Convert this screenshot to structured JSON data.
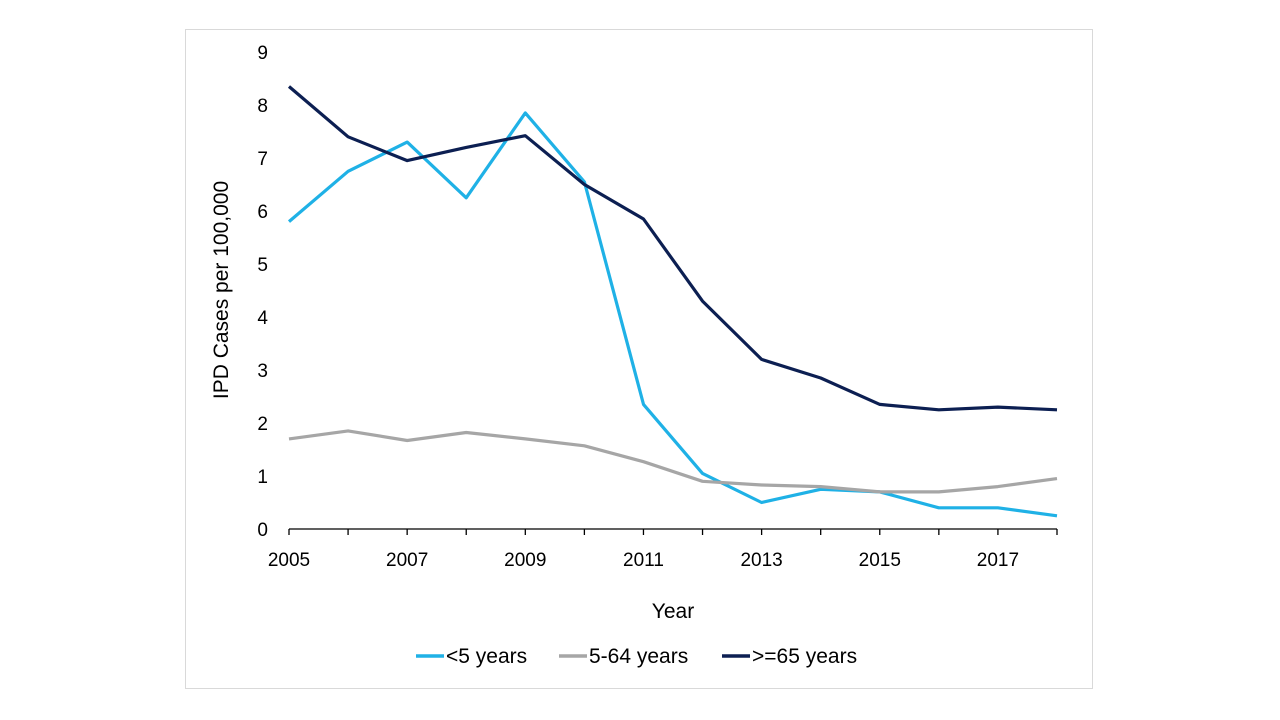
{
  "chart_data": {
    "type": "line",
    "title": "",
    "xlabel": "Year",
    "ylabel": "IPD Cases per 100,000",
    "x": [
      2005,
      2006,
      2007,
      2008,
      2009,
      2010,
      2011,
      2012,
      2013,
      2014,
      2015,
      2016,
      2017,
      2018
    ],
    "x_tick_labels": [
      "2005",
      "2007",
      "2009",
      "2011",
      "2013",
      "2015",
      "2017"
    ],
    "x_ticks": [
      2005,
      2007,
      2009,
      2011,
      2013,
      2015,
      2017
    ],
    "y_tick_labels": [
      "0",
      "1",
      "2",
      "3",
      "4",
      "5",
      "6",
      "7",
      "8",
      "9"
    ],
    "ylim": [
      0,
      9
    ],
    "xlim": [
      2005,
      2018
    ],
    "grid": false,
    "legend_position": "bottom",
    "series": [
      {
        "name": "<5 years",
        "color": "#1fb1e6",
        "values": [
          5.8,
          6.75,
          7.3,
          6.25,
          7.85,
          6.55,
          2.35,
          1.05,
          0.5,
          0.75,
          0.7,
          0.4,
          0.4,
          0.25
        ]
      },
      {
        "name": "5-64 years",
        "color": "#a6a6a6",
        "values": [
          1.7,
          1.85,
          1.67,
          1.82,
          1.7,
          1.57,
          1.27,
          0.9,
          0.83,
          0.8,
          0.7,
          0.7,
          0.8,
          0.95
        ]
      },
      {
        "name": ">=65 years",
        "color": "#0c1f52",
        "values": [
          8.35,
          7.4,
          6.95,
          7.2,
          7.42,
          6.5,
          5.85,
          4.3,
          3.2,
          2.85,
          2.35,
          2.25,
          2.3,
          2.25
        ]
      }
    ]
  }
}
